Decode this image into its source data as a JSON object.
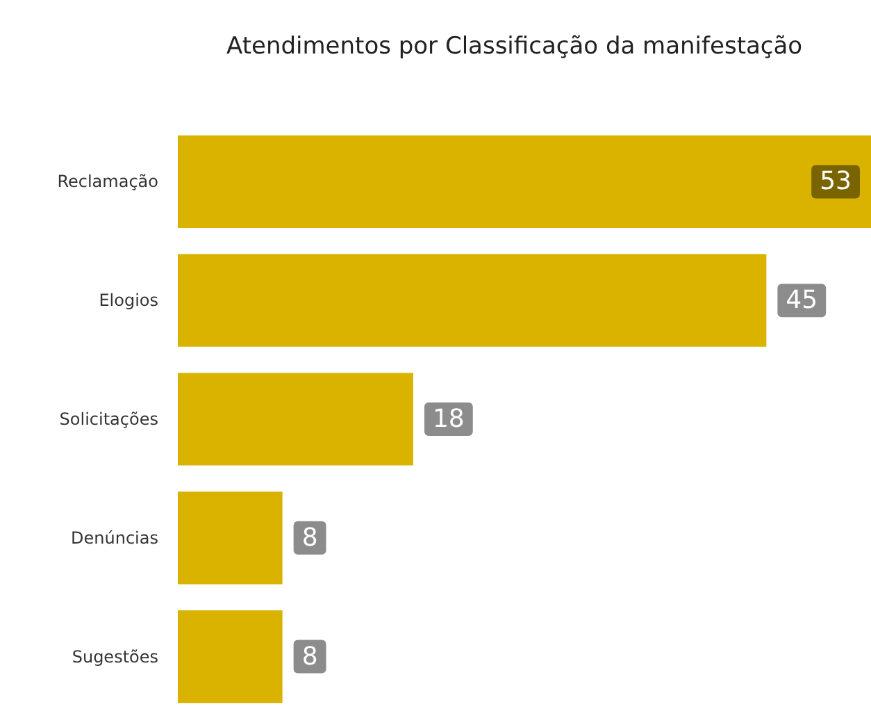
{
  "chart_data": {
    "type": "bar",
    "orientation": "horizontal",
    "title": "Atendimentos por Classificação da manifestação",
    "categories": [
      "Reclamação",
      "Elogios",
      "Solicitações",
      "Denúncias",
      "Sugestões"
    ],
    "values": [
      53,
      45,
      18,
      8,
      8
    ],
    "color": "#d9b300",
    "data_labels": true
  }
}
